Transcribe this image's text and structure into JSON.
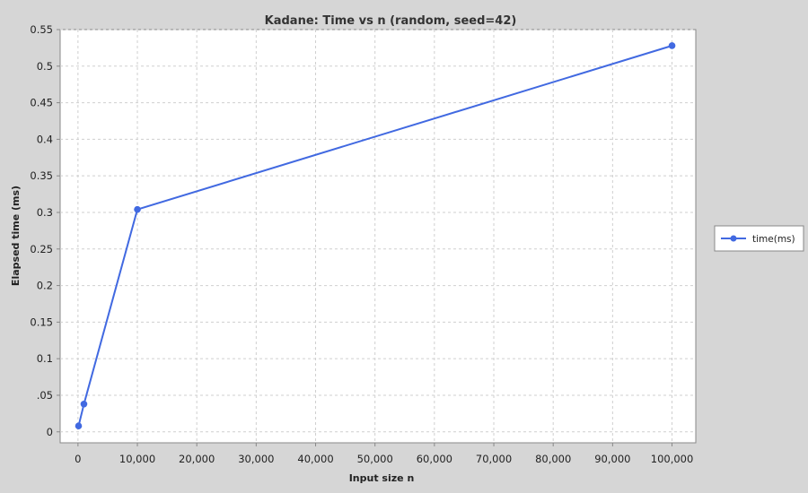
{
  "chart_data": {
    "type": "line",
    "title": "Kadane: Time vs n (random, seed=42)",
    "xlabel": "Input size n",
    "ylabel": "Elapsed time (ms)",
    "xlim": [
      -3000,
      104000
    ],
    "ylim": [
      -0.015,
      0.55
    ],
    "x_ticks": [
      {
        "value": 0,
        "label": "0"
      },
      {
        "value": 10000,
        "label": "10,000"
      },
      {
        "value": 20000,
        "label": "20,000"
      },
      {
        "value": 30000,
        "label": "30,000"
      },
      {
        "value": 40000,
        "label": "40,000"
      },
      {
        "value": 50000,
        "label": "50,000"
      },
      {
        "value": 60000,
        "label": "60,000"
      },
      {
        "value": 70000,
        "label": "70,000"
      },
      {
        "value": 80000,
        "label": "80,000"
      },
      {
        "value": 90000,
        "label": "90,000"
      },
      {
        "value": 100000,
        "label": "100,000"
      }
    ],
    "y_ticks": [
      {
        "value": 0,
        "label": "0"
      },
      {
        "value": 0.05,
        "label": ".05"
      },
      {
        "value": 0.1,
        "label": "0.1"
      },
      {
        "value": 0.15,
        "label": "0.15"
      },
      {
        "value": 0.2,
        "label": "0.2"
      },
      {
        "value": 0.25,
        "label": "0.25"
      },
      {
        "value": 0.3,
        "label": "0.3"
      },
      {
        "value": 0.35,
        "label": "0.35"
      },
      {
        "value": 0.4,
        "label": "0.4"
      },
      {
        "value": 0.45,
        "label": "0.45"
      },
      {
        "value": 0.5,
        "label": "0.5"
      },
      {
        "value": 0.55,
        "label": "0.55"
      }
    ],
    "grid": true,
    "legend_position": "right",
    "series": [
      {
        "name": "time(ms)",
        "color": "#4169e1",
        "x": [
          100,
          1000,
          10000,
          100000
        ],
        "y": [
          0.008,
          0.038,
          0.304,
          0.528
        ]
      }
    ]
  },
  "colors": {
    "page_background": "#d6d6d6",
    "plot_background": "#ffffff",
    "grid": "#cfcfcf",
    "axis": "#888888"
  }
}
